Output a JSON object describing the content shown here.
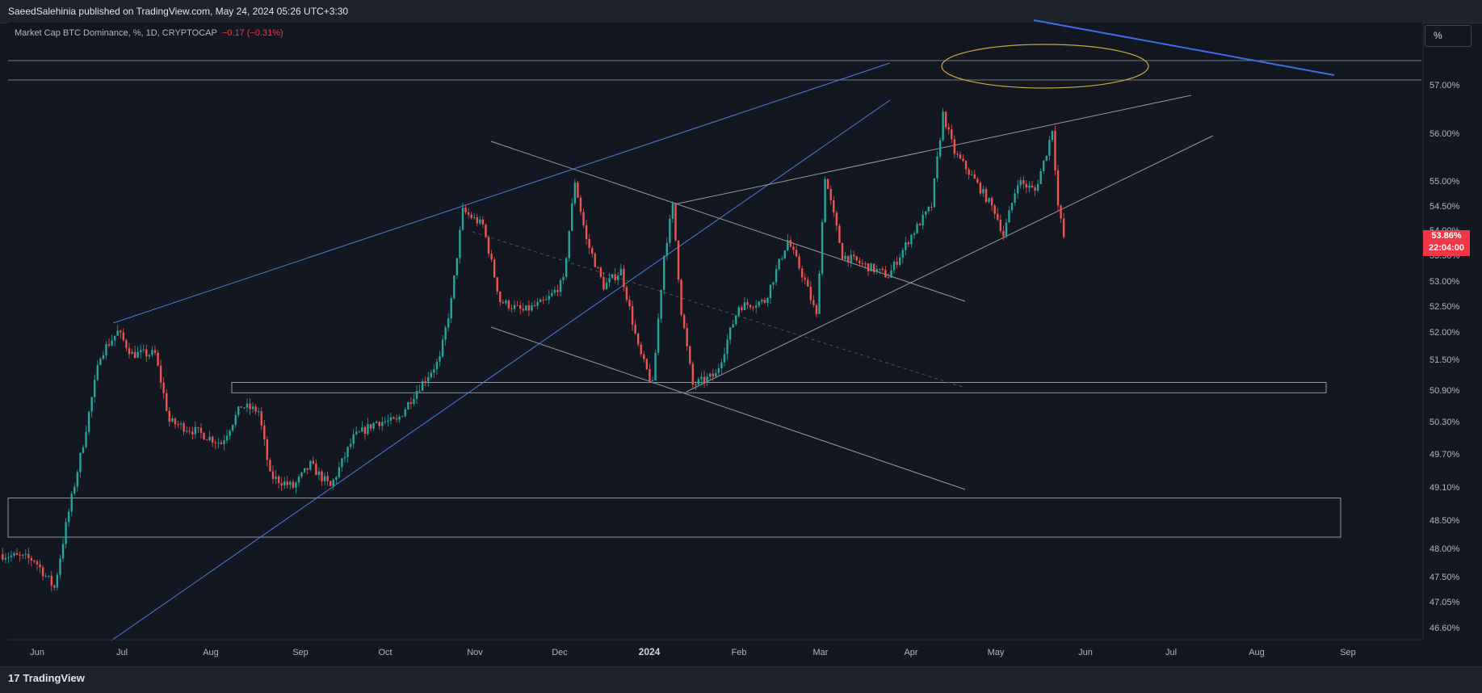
{
  "header": {
    "published": "SaeedSalehinia published on TradingView.com, May 24, 2024 05:26 UTC+3:30"
  },
  "legend": {
    "symbol": "Market Cap BTC Dominance, %, 1D, CRYPTOCAP",
    "change": "−0.17 (−0.31%)"
  },
  "scale_button": "%",
  "price_tag": {
    "value": "53.86%",
    "countdown": "22:04:00"
  },
  "brand": {
    "logo": "17",
    "name": "TradingView"
  },
  "colors": {
    "up": "#26a69a",
    "down": "#ef5350",
    "trend": "#2962ff",
    "background": "#131722"
  },
  "chart_data": {
    "type": "candlestick",
    "title": "",
    "x_ticks": [
      "Jun",
      "Jul",
      "Aug",
      "Sep",
      "Oct",
      "Nov",
      "Dec",
      "2024",
      "Feb",
      "Mar",
      "Apr",
      "May",
      "Jun",
      "Jul",
      "Aug",
      "Sep"
    ],
    "y_ticks": [
      "57.00%",
      "56.00%",
      "55.00%",
      "54.50%",
      "54.00%",
      "53.50%",
      "53.00%",
      "52.50%",
      "52.00%",
      "51.50%",
      "50.90%",
      "50.30%",
      "49.70%",
      "49.10%",
      "48.50%",
      "48.00%",
      "47.50%",
      "47.05%",
      "46.60%"
    ],
    "last_value": 53.86,
    "series_close": [
      [
        "2023-05-20",
        47.9
      ],
      [
        "2023-06-01",
        47.8
      ],
      [
        "2023-06-08",
        47.3
      ],
      [
        "2023-06-12",
        48.4
      ],
      [
        "2023-06-18",
        49.9
      ],
      [
        "2023-06-24",
        51.6
      ],
      [
        "2023-06-30",
        52.0
      ],
      [
        "2023-07-05",
        51.6
      ],
      [
        "2023-07-13",
        51.6
      ],
      [
        "2023-07-18",
        50.3
      ],
      [
        "2023-07-28",
        50.1
      ],
      [
        "2023-08-05",
        49.9
      ],
      [
        "2023-08-12",
        50.6
      ],
      [
        "2023-08-18",
        50.5
      ],
      [
        "2023-08-22",
        49.3
      ],
      [
        "2023-08-30",
        49.1
      ],
      [
        "2023-09-05",
        49.5
      ],
      [
        "2023-09-12",
        49.1
      ],
      [
        "2023-09-20",
        50.0
      ],
      [
        "2023-09-28",
        50.3
      ],
      [
        "2023-10-05",
        50.3
      ],
      [
        "2023-10-12",
        50.9
      ],
      [
        "2023-10-20",
        51.5
      ],
      [
        "2023-10-24",
        52.6
      ],
      [
        "2023-10-28",
        54.4
      ],
      [
        "2023-11-04",
        54.1
      ],
      [
        "2023-11-10",
        52.6
      ],
      [
        "2023-11-18",
        52.4
      ],
      [
        "2023-11-26",
        52.6
      ],
      [
        "2023-12-02",
        53.0
      ],
      [
        "2023-12-06",
        55.0
      ],
      [
        "2023-12-10",
        53.8
      ],
      [
        "2023-12-16",
        52.9
      ],
      [
        "2023-12-22",
        53.2
      ],
      [
        "2023-12-28",
        51.7
      ],
      [
        "2024-01-02",
        51.0
      ],
      [
        "2024-01-06",
        53.5
      ],
      [
        "2024-01-09",
        54.5
      ],
      [
        "2024-01-12",
        52.4
      ],
      [
        "2024-01-16",
        51.0
      ],
      [
        "2024-01-24",
        51.2
      ],
      [
        "2024-02-01",
        52.5
      ],
      [
        "2024-02-10",
        52.6
      ],
      [
        "2024-02-18",
        53.8
      ],
      [
        "2024-02-24",
        53.0
      ],
      [
        "2024-02-28",
        52.3
      ],
      [
        "2024-03-02",
        55.1
      ],
      [
        "2024-03-08",
        53.5
      ],
      [
        "2024-03-16",
        53.3
      ],
      [
        "2024-03-24",
        53.1
      ],
      [
        "2024-04-01",
        53.9
      ],
      [
        "2024-04-08",
        54.5
      ],
      [
        "2024-04-12",
        56.4
      ],
      [
        "2024-04-16",
        55.6
      ],
      [
        "2024-04-22",
        55.1
      ],
      [
        "2024-04-30",
        54.4
      ],
      [
        "2024-05-03",
        53.9
      ],
      [
        "2024-05-08",
        55.0
      ],
      [
        "2024-05-14",
        54.8
      ],
      [
        "2024-05-18",
        55.6
      ],
      [
        "2024-05-20",
        56.1
      ],
      [
        "2024-05-22",
        54.5
      ],
      [
        "2024-05-24",
        53.86
      ]
    ],
    "horizontal_zones": [
      [
        50.85,
        51.05
      ],
      [
        48.2,
        48.9
      ]
    ],
    "horizontal_lines": [
      57.5,
      57.1
    ]
  }
}
